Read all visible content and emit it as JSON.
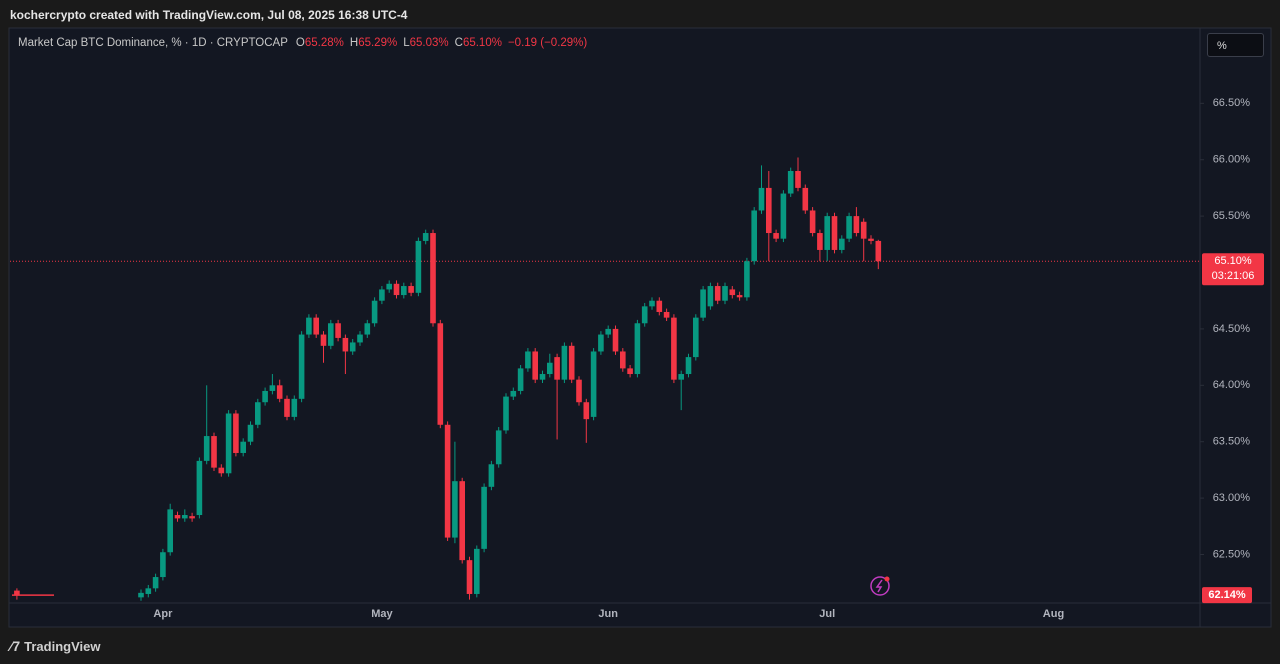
{
  "header": {
    "attribution": "kochercrypto created with TradingView.com, Jul 08, 2025 16:38 UTC-4",
    "scale_button": "%",
    "footer_logo": "TradingView"
  },
  "chart_data": {
    "type": "candlestick",
    "title": "Market Cap BTC Dominance, % · 1D · CRYPTOCAP",
    "ohlc_legend": [
      {
        "key": "O",
        "value": "65.28%"
      },
      {
        "key": "H",
        "value": "65.29%"
      },
      {
        "key": "L",
        "value": "65.03%"
      },
      {
        "key": "C",
        "value": "65.10%"
      }
    ],
    "change": "−0.19 (−0.29%)",
    "up_color": "#089981",
    "down_color": "#f23645",
    "categories": [
      null,
      null,
      null,
      null,
      null,
      null,
      null,
      null,
      null,
      null,
      null,
      null,
      null,
      null,
      null,
      null,
      null,
      null,
      null,
      null,
      "Apr",
      null,
      null,
      null,
      null,
      null,
      null,
      null,
      null,
      null,
      null,
      null,
      null,
      null,
      null,
      null,
      null,
      null,
      null,
      null,
      null,
      null,
      null,
      null,
      null,
      null,
      null,
      null,
      null,
      null,
      "May",
      null,
      null,
      null,
      null,
      null,
      null,
      null,
      null,
      null,
      null,
      null,
      null,
      null,
      null,
      null,
      null,
      null,
      null,
      null,
      null,
      null,
      null,
      null,
      null,
      null,
      null,
      null,
      null,
      null,
      null,
      "Jun",
      null,
      null,
      null,
      null,
      null,
      null,
      null,
      null,
      null,
      null,
      null,
      null,
      null,
      null,
      null,
      null,
      null,
      null,
      null,
      null,
      null,
      null,
      null,
      null,
      null,
      null,
      null,
      null,
      null,
      "Jul",
      null,
      null,
      null,
      null,
      null,
      null,
      null,
      null,
      null,
      null,
      null,
      null,
      null,
      null,
      null,
      null,
      null,
      null,
      null,
      null,
      null,
      null,
      null,
      null,
      null,
      null,
      null,
      null,
      null,
      null,
      "Aug",
      null,
      null,
      null,
      null,
      null,
      null,
      null,
      null,
      null,
      null,
      null,
      null,
      null,
      null,
      null,
      null,
      null,
      null,
      null,
      null
    ],
    "open": [
      62.18,
      null,
      null,
      null,
      null,
      null,
      null,
      null,
      null,
      null,
      null,
      null,
      null,
      null,
      null,
      null,
      null,
      62.12,
      62.15,
      62.2,
      62.3,
      62.52,
      62.85,
      62.82,
      62.84,
      62.85,
      63.33,
      63.55,
      63.27,
      63.22,
      63.75,
      63.4,
      63.5,
      63.65,
      63.85,
      63.95,
      64.0,
      63.88,
      63.72,
      63.88,
      64.45,
      64.6,
      64.45,
      64.35,
      64.55,
      64.42,
      64.3,
      64.38,
      64.45,
      64.55,
      64.75,
      64.85,
      64.9,
      64.8,
      64.88,
      64.82,
      65.28,
      65.35,
      64.55,
      63.65,
      62.65,
      63.15,
      62.45,
      62.15,
      62.55,
      63.1,
      63.3,
      63.6,
      63.9,
      63.95,
      64.15,
      64.3,
      64.05,
      64.1,
      64.25,
      64.05,
      64.35,
      64.05,
      63.85,
      63.72,
      64.3,
      64.45,
      64.5,
      64.3,
      64.15,
      64.1,
      64.55,
      64.7,
      64.75,
      64.65,
      64.6,
      64.05,
      64.1,
      64.25,
      64.6,
      64.7,
      64.88,
      64.75,
      64.85,
      64.8,
      64.78,
      65.1,
      65.55,
      65.75,
      65.35,
      65.3,
      65.7,
      65.9,
      65.75,
      65.55,
      65.35,
      65.2,
      65.5,
      65.2,
      65.3,
      65.5,
      65.45,
      65.3,
      65.28,
      null,
      null,
      null,
      null,
      null,
      null,
      null,
      null,
      null,
      null,
      null,
      null,
      null,
      null,
      null,
      null,
      null,
      null,
      null,
      null,
      null,
      null,
      null,
      null,
      null,
      null,
      null,
      null,
      null,
      null,
      null,
      null,
      null,
      null,
      null,
      null,
      null,
      null,
      null,
      null,
      null,
      null,
      null,
      null
    ],
    "high": [
      62.2,
      null,
      null,
      null,
      null,
      null,
      null,
      null,
      null,
      null,
      null,
      null,
      null,
      null,
      null,
      null,
      null,
      62.19,
      62.23,
      62.33,
      62.55,
      62.95,
      62.88,
      62.9,
      62.87,
      63.36,
      64.0,
      63.58,
      63.3,
      63.78,
      63.78,
      63.53,
      63.68,
      63.88,
      63.98,
      64.1,
      64.05,
      63.91,
      63.91,
      64.48,
      64.63,
      64.63,
      64.48,
      64.58,
      64.58,
      64.45,
      64.41,
      64.48,
      64.58,
      64.78,
      64.88,
      64.93,
      64.93,
      64.91,
      64.91,
      65.31,
      65.38,
      65.38,
      64.58,
      63.68,
      63.5,
      63.18,
      62.48,
      62.58,
      63.13,
      63.33,
      63.63,
      63.93,
      63.98,
      64.18,
      64.33,
      64.33,
      64.13,
      64.28,
      64.28,
      64.38,
      64.38,
      64.08,
      63.88,
      64.33,
      64.48,
      64.53,
      64.53,
      64.33,
      64.18,
      64.58,
      64.73,
      64.78,
      64.78,
      64.68,
      64.63,
      64.13,
      64.28,
      64.63,
      64.88,
      64.91,
      64.91,
      64.91,
      64.88,
      64.83,
      65.13,
      65.58,
      65.95,
      65.9,
      65.38,
      65.73,
      65.93,
      66.02,
      65.78,
      65.58,
      65.38,
      65.53,
      65.53,
      65.33,
      65.53,
      65.58,
      65.48,
      65.33,
      65.29,
      null,
      null,
      null,
      null,
      null,
      null,
      null,
      null,
      null,
      null,
      null,
      null,
      null,
      null,
      null,
      null,
      null,
      null,
      null,
      null,
      null,
      null,
      null,
      null,
      null,
      null,
      null,
      null,
      null,
      null,
      null,
      null,
      null,
      null,
      null,
      null,
      null,
      null,
      null,
      null,
      null,
      null,
      null,
      null
    ],
    "low": [
      62.1,
      null,
      null,
      null,
      null,
      null,
      null,
      null,
      null,
      null,
      null,
      null,
      null,
      null,
      null,
      null,
      null,
      62.09,
      62.12,
      62.17,
      62.27,
      62.49,
      62.79,
      62.79,
      62.79,
      62.82,
      63.3,
      63.24,
      63.19,
      63.19,
      63.37,
      63.37,
      63.47,
      63.62,
      63.82,
      63.92,
      63.85,
      63.69,
      63.69,
      63.85,
      64.42,
      64.42,
      64.2,
      64.32,
      64.39,
      64.1,
      64.27,
      64.35,
      64.42,
      64.52,
      64.72,
      64.82,
      64.77,
      64.77,
      64.79,
      64.79,
      65.25,
      64.52,
      63.62,
      62.62,
      62.6,
      62.42,
      62.1,
      62.12,
      62.52,
      63.07,
      63.27,
      63.57,
      63.87,
      63.92,
      64.12,
      64.02,
      64.02,
      64.07,
      63.52,
      64.02,
      64.02,
      63.82,
      63.49,
      63.69,
      64.27,
      64.42,
      64.27,
      64.12,
      64.07,
      64.07,
      64.52,
      64.67,
      64.62,
      64.57,
      64.02,
      63.78,
      64.07,
      64.22,
      64.57,
      64.67,
      64.72,
      64.72,
      64.77,
      64.75,
      64.75,
      65.07,
      65.52,
      65.1,
      65.27,
      65.27,
      65.67,
      65.72,
      65.52,
      65.32,
      65.1,
      65.1,
      65.17,
      65.17,
      65.27,
      65.32,
      65.1,
      65.25,
      65.03,
      null,
      null,
      null,
      null,
      null,
      null,
      null,
      null,
      null,
      null,
      null,
      null,
      null,
      null,
      null,
      null,
      null,
      null,
      null,
      null,
      null,
      null,
      null,
      null,
      null,
      null,
      null,
      null,
      null,
      null,
      null,
      null,
      null,
      null,
      null,
      null,
      null,
      null,
      null,
      null,
      null,
      null,
      null,
      null
    ],
    "close": [
      62.14,
      null,
      null,
      null,
      null,
      null,
      null,
      null,
      null,
      null,
      null,
      null,
      null,
      null,
      null,
      null,
      null,
      62.16,
      62.2,
      62.3,
      62.52,
      62.9,
      62.82,
      62.85,
      62.82,
      63.33,
      63.55,
      63.27,
      63.22,
      63.75,
      63.4,
      63.5,
      63.65,
      63.85,
      63.95,
      64.0,
      63.88,
      63.72,
      63.88,
      64.45,
      64.6,
      64.45,
      64.35,
      64.55,
      64.42,
      64.3,
      64.38,
      64.45,
      64.55,
      64.75,
      64.85,
      64.9,
      64.8,
      64.88,
      64.82,
      65.28,
      65.35,
      64.55,
      63.65,
      62.65,
      63.15,
      62.45,
      62.15,
      62.55,
      63.1,
      63.3,
      63.6,
      63.9,
      63.95,
      64.15,
      64.3,
      64.05,
      64.1,
      64.2,
      64.05,
      64.35,
      64.05,
      63.85,
      63.7,
      64.3,
      64.45,
      64.5,
      64.3,
      64.15,
      64.1,
      64.55,
      64.7,
      64.75,
      64.65,
      64.6,
      64.05,
      64.1,
      64.25,
      64.6,
      64.85,
      64.88,
      64.75,
      64.88,
      64.8,
      64.78,
      65.1,
      65.55,
      65.75,
      65.35,
      65.3,
      65.7,
      65.9,
      65.75,
      65.55,
      65.35,
      65.2,
      65.5,
      65.2,
      65.3,
      65.5,
      65.35,
      65.3,
      65.28,
      65.1,
      null,
      null,
      null,
      null,
      null,
      null,
      null,
      null,
      null,
      null,
      null,
      null,
      null,
      null,
      null,
      null,
      null,
      null,
      null,
      null,
      null,
      null,
      null,
      null,
      null,
      null,
      null,
      null,
      null,
      null,
      null,
      null,
      null,
      null,
      null,
      null,
      null,
      null,
      null,
      null,
      null,
      null,
      null,
      null
    ],
    "ylim": [
      62.07,
      67.15
    ],
    "yticks": [
      {
        "value": 62.5,
        "label": "62.50%"
      },
      {
        "value": 63,
        "label": "63.00%"
      },
      {
        "value": 63.5,
        "label": "63.50%"
      },
      {
        "value": 64,
        "label": "64.00%"
      },
      {
        "value": 64.5,
        "label": "64.50%"
      },
      {
        "value": 65.5,
        "label": "65.50%"
      },
      {
        "value": 66,
        "label": "66.00%"
      },
      {
        "value": 66.5,
        "label": "66.50%"
      }
    ],
    "last_price": {
      "value": 65.1,
      "label": "65.10%"
    },
    "countdown": "03:21:06",
    "marker_price": {
      "value": 62.14,
      "label": "62.14%"
    }
  }
}
